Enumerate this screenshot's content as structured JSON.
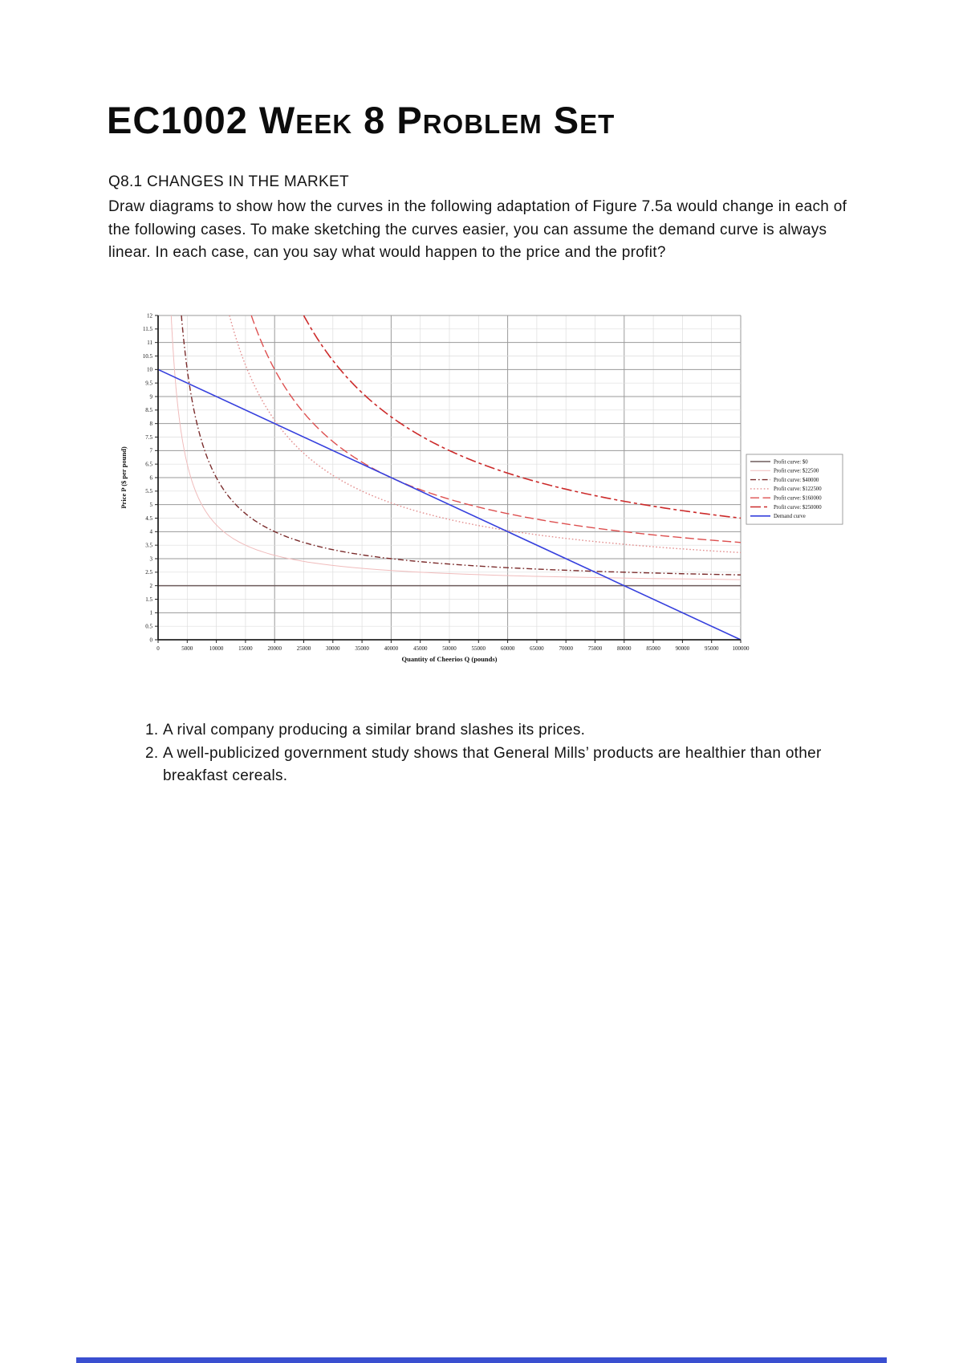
{
  "document": {
    "title": "EC1002 Week 8 Problem Set",
    "section_heading": "Q8.1 CHANGES IN THE MARKET",
    "intro": "Draw diagrams to show how the curves in the following adaptation of Figure 7.5a would change in each of the following cases. To make sketching the curves easier, you can assume the demand curve is always linear. In each case, can you say what would happen to the price and the profit?",
    "list_items": [
      "A rival company producing a similar brand slashes its prices.",
      "A well-publicized government study shows that General Mills’ products are healthier than other breakfast cereals."
    ]
  },
  "chart_data": {
    "type": "line",
    "title": "",
    "xlabel": "Quantity of Cheerios Q (pounds)",
    "ylabel": "Price P ($ per pound)",
    "xlim": [
      0,
      100000
    ],
    "ylim": [
      0,
      12
    ],
    "x_tick_step": 5000,
    "y_tick_step": 0.5,
    "x_major_grid_step": 20000,
    "y_major_grid_step": 1,
    "grid": "on",
    "legend_position": "right",
    "marginal_cost": 2,
    "profit_curves": [
      {
        "label": "Profit curve: $0",
        "profit": 0,
        "color": "#6e5c5c",
        "dash": "solid",
        "width": 1.5
      },
      {
        "label": "Profit curve: $22500",
        "profit": 22500,
        "color": "#f0bcbc",
        "dash": "solid",
        "width": 1.0
      },
      {
        "label": "Profit curve: $40000",
        "profit": 40000,
        "color": "#7b2c2c",
        "dash": "dashdot",
        "width": 1.4
      },
      {
        "label": "Profit curve: $122500",
        "profit": 122500,
        "color": "#e38f8f",
        "dash": "dotted",
        "width": 1.4
      },
      {
        "label": "Profit curve: $160000",
        "profit": 160000,
        "color": "#dd5050",
        "dash": "longdash",
        "width": 1.4
      },
      {
        "label": "Profit curve: $250000",
        "profit": 250000,
        "color": "#cc2a2a",
        "dash": "dashspace",
        "width": 1.6
      }
    ],
    "demand_curve": {
      "label": "Demand curve",
      "points": [
        [
          0,
          10
        ],
        [
          100000,
          0
        ]
      ],
      "color": "#3640dd",
      "width": 1.6
    }
  }
}
